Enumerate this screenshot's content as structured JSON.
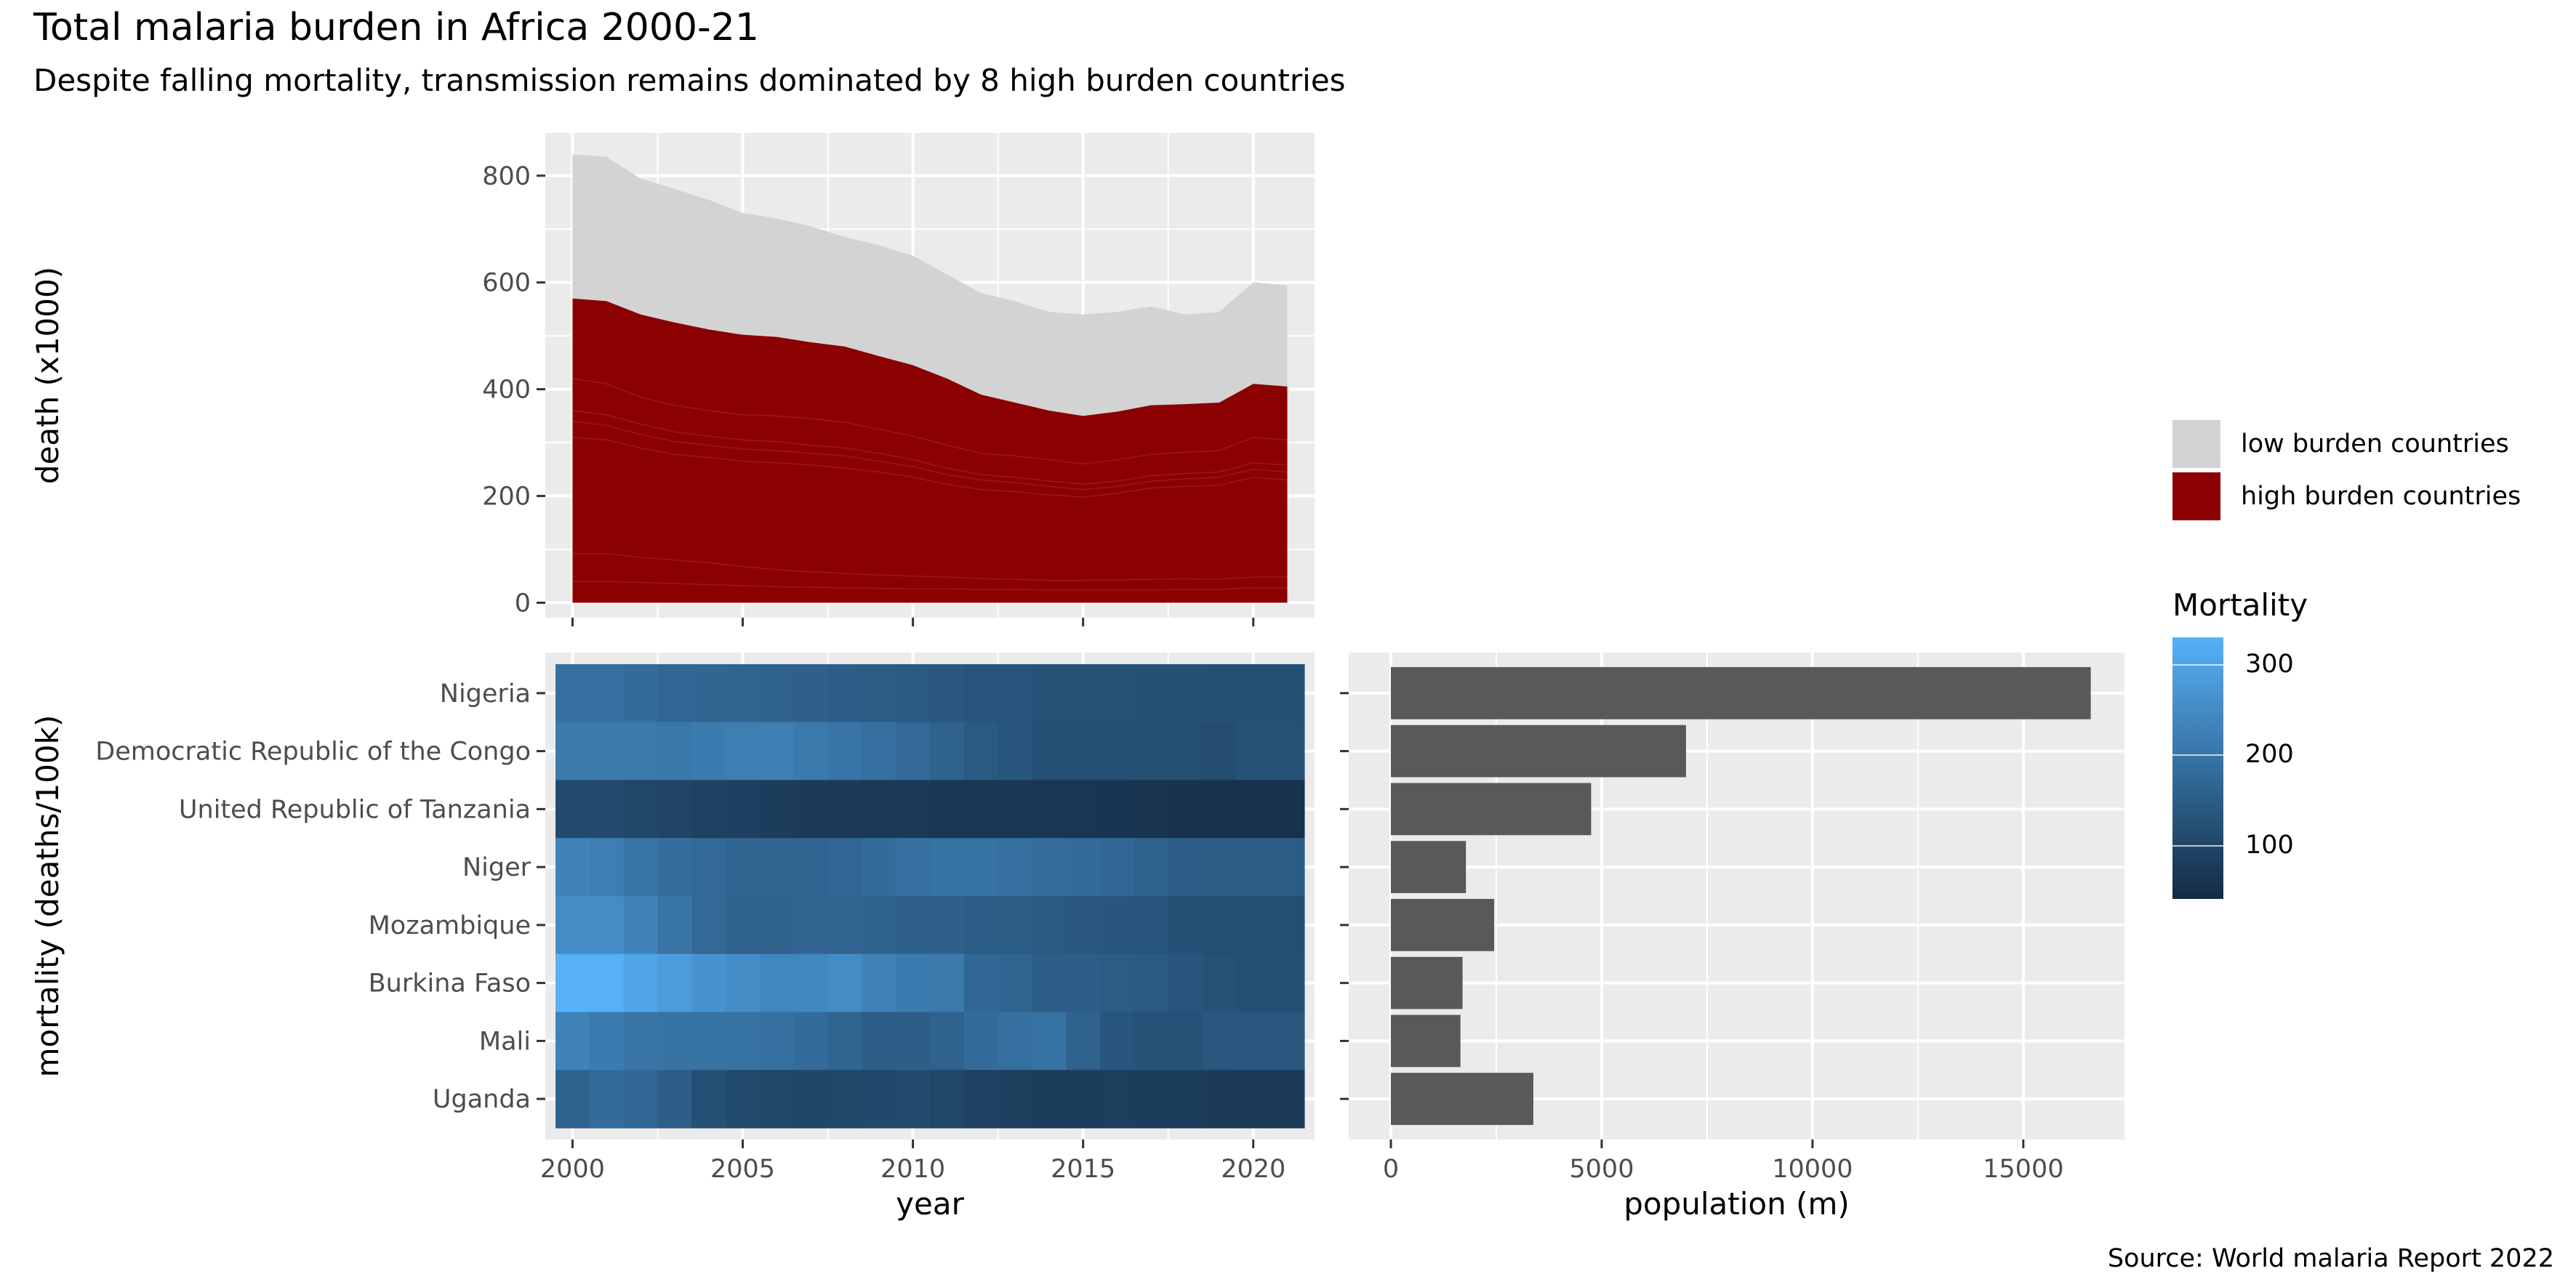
{
  "title": "Total malaria burden in Africa 2000-21",
  "subtitle": "Despite falling mortality, transmission remains dominated by 8 high burden countries",
  "caption": "Source: World malaria Report 2022",
  "colors": {
    "panel_bg": "#EBEBEB",
    "grid": "#FFFFFF",
    "low_burden": "#D3D3D3",
    "high_burden": "#8B0000",
    "bar": "#595959",
    "gradient_low": "#132B43",
    "gradient_high": "#56B1F7"
  },
  "legend_fill": {
    "items": [
      {
        "label": "low burden countries",
        "color": "#D3D3D3"
      },
      {
        "label": "high burden countries",
        "color": "#8B0000"
      }
    ]
  },
  "legend_mortality": {
    "title": "Mortality",
    "breaks": [
      "300",
      "200",
      "100"
    ],
    "break_values": [
      300,
      200,
      100
    ],
    "range": [
      40,
      330
    ]
  },
  "chart_data": [
    {
      "type": "area",
      "panel": "top-left",
      "xlabel": "",
      "ylabel": "death (x1000)",
      "xlim": [
        1999.2,
        2021.8
      ],
      "ylim": [
        -28,
        880
      ],
      "yticks": [
        "0",
        "200",
        "400",
        "600",
        "800"
      ],
      "ytick_values": [
        0,
        200,
        400,
        600,
        800
      ],
      "xtick_values": [
        2000,
        2005,
        2010,
        2015,
        2020
      ],
      "x": [
        2000,
        2001,
        2002,
        2003,
        2004,
        2005,
        2006,
        2007,
        2008,
        2009,
        2010,
        2011,
        2012,
        2013,
        2014,
        2015,
        2016,
        2017,
        2018,
        2019,
        2020,
        2021
      ],
      "series": [
        {
          "name": "low burden countries",
          "values": [
            840,
            835,
            795,
            775,
            755,
            730,
            720,
            705,
            685,
            670,
            650,
            615,
            580,
            565,
            545,
            540,
            545,
            555,
            540,
            545,
            600,
            595
          ]
        },
        {
          "name": "high burden countries",
          "values": [
            570,
            565,
            540,
            525,
            512,
            502,
            498,
            488,
            480,
            462,
            445,
            420,
            390,
            375,
            360,
            350,
            358,
            370,
            372,
            375,
            410,
            405
          ]
        }
      ],
      "inner_lines": [
        [
          420,
          410,
          385,
          370,
          360,
          352,
          350,
          345,
          338,
          325,
          312,
          295,
          280,
          275,
          268,
          260,
          268,
          278,
          282,
          285,
          310,
          305
        ],
        [
          360,
          352,
          335,
          320,
          312,
          305,
          302,
          295,
          290,
          280,
          268,
          252,
          240,
          235,
          228,
          222,
          228,
          238,
          242,
          245,
          262,
          258
        ],
        [
          340,
          332,
          315,
          302,
          295,
          288,
          285,
          280,
          275,
          265,
          255,
          240,
          230,
          225,
          218,
          212,
          218,
          228,
          232,
          235,
          250,
          245
        ],
        [
          310,
          305,
          290,
          278,
          272,
          265,
          262,
          258,
          252,
          245,
          235,
          222,
          212,
          208,
          202,
          198,
          205,
          215,
          218,
          220,
          235,
          230
        ],
        [
          92,
          92,
          85,
          80,
          75,
          68,
          62,
          58,
          55,
          52,
          50,
          48,
          45,
          44,
          42,
          42,
          43,
          44,
          45,
          44,
          48,
          48
        ],
        [
          40,
          40,
          38,
          36,
          34,
          32,
          30,
          29,
          28,
          27,
          26,
          26,
          25,
          25,
          24,
          24,
          24,
          24,
          25,
          25,
          28,
          28
        ]
      ]
    },
    {
      "type": "heatmap",
      "panel": "bottom-left",
      "xlabel": "year",
      "ylabel": "mortality (deaths/100k)",
      "xticks": [
        "2000",
        "2005",
        "2010",
        "2015",
        "2020"
      ],
      "xtick_values": [
        2000,
        2005,
        2010,
        2015,
        2020
      ],
      "xlim": [
        1999.2,
        2021.8
      ],
      "x": [
        2000,
        2001,
        2002,
        2003,
        2004,
        2005,
        2006,
        2007,
        2008,
        2009,
        2010,
        2011,
        2012,
        2013,
        2014,
        2015,
        2016,
        2017,
        2018,
        2019,
        2020,
        2021
      ],
      "categories": [
        "Nigeria",
        "Democratic Republic of the Congo",
        "United Republic of Tanzania",
        "Niger",
        "Mozambique",
        "Burkina Faso",
        "Mali",
        "Uganda"
      ],
      "values": [
        [
          190,
          190,
          180,
          170,
          168,
          165,
          160,
          155,
          150,
          145,
          140,
          135,
          130,
          128,
          125,
          125,
          125,
          123,
          122,
          120,
          120,
          120
        ],
        [
          210,
          210,
          210,
          205,
          215,
          220,
          220,
          210,
          200,
          190,
          175,
          160,
          140,
          130,
          120,
          118,
          118,
          118,
          115,
          112,
          125,
          125
        ],
        [
          110,
          108,
          100,
          95,
          90,
          88,
          80,
          75,
          72,
          70,
          70,
          68,
          68,
          66,
          65,
          64,
          62,
          60,
          58,
          56,
          55,
          55
        ],
        [
          230,
          220,
          200,
          185,
          175,
          165,
          165,
          165,
          170,
          180,
          190,
          195,
          195,
          190,
          185,
          180,
          170,
          160,
          150,
          145,
          145,
          145
        ],
        [
          250,
          250,
          230,
          200,
          175,
          160,
          160,
          165,
          165,
          160,
          155,
          155,
          150,
          145,
          140,
          135,
          132,
          128,
          122,
          115,
          115,
          115
        ],
        [
          330,
          330,
          305,
          285,
          265,
          250,
          240,
          240,
          250,
          230,
          215,
          210,
          170,
          165,
          150,
          150,
          145,
          140,
          130,
          125,
          120,
          120
        ],
        [
          230,
          215,
          200,
          195,
          195,
          195,
          190,
          180,
          165,
          150,
          150,
          160,
          180,
          190,
          195,
          160,
          130,
          125,
          125,
          135,
          135,
          135
        ],
        [
          160,
          180,
          170,
          150,
          120,
          110,
          100,
          98,
          100,
          105,
          110,
          100,
          90,
          85,
          80,
          80,
          82,
          80,
          78,
          75,
          72,
          72
        ]
      ]
    },
    {
      "type": "bar",
      "orientation": "horizontal",
      "panel": "bottom-right",
      "xlabel": "population (m)",
      "ylabel": "",
      "xticks": [
        "0",
        "5000",
        "10000",
        "15000"
      ],
      "xtick_values": [
        0,
        5000,
        10000,
        15000
      ],
      "xlim": [
        -1000,
        17400
      ],
      "categories": [
        "Nigeria",
        "Democratic Republic of the Congo",
        "United Republic of Tanzania",
        "Niger",
        "Mozambique",
        "Burkina Faso",
        "Mali",
        "Uganda"
      ],
      "values": [
        16600,
        7000,
        4750,
        1780,
        2450,
        1700,
        1650,
        3380
      ]
    }
  ]
}
